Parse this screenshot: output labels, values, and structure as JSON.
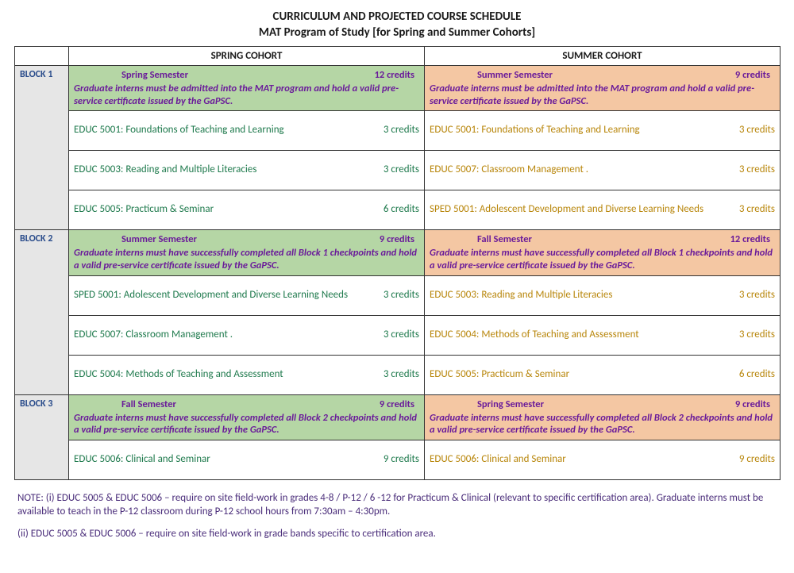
{
  "title": "CURRICULUM AND PROJECTED COURSE SCHEDULE",
  "subtitle": "MAT Program of Study [for Spring and Summer Cohorts]",
  "columns": {
    "spring": "SPRING COHORT",
    "summer": "SUMMER COHORT"
  },
  "colors": {
    "header_green": "#b5d6a5",
    "header_orange": "#f4c7a3",
    "block_label_bg": "#e6e6e6",
    "block_label_text": "#2a4c8b",
    "purple_text": "#6a1b9a",
    "spring_text": "#1f7a4d",
    "summer_text": "#b8860b",
    "note_text": "#4a2d7a"
  },
  "blocks": [
    {
      "label": "BLOCK 1",
      "spring": {
        "semester": "Spring  Semester",
        "credits": "12 credits",
        "note": "Graduate interns must be admitted into the MAT program and hold a valid pre-service certificate issued by the GaPSC.",
        "courses": [
          {
            "name": "EDUC 5001: Foundations of Teaching and Learning",
            "credits": "3 credits"
          },
          {
            "name": "EDUC 5003: Reading and Multiple Literacies",
            "credits": "3 credits"
          },
          {
            "name": "EDUC 5005: Practicum & Seminar",
            "credits": "6 credits"
          }
        ]
      },
      "summer": {
        "semester": "Summer  Semester",
        "credits": "9 credits",
        "note": "Graduate interns must be admitted into the MAT program and hold a valid pre-service certificate issued by the GaPSC.",
        "courses": [
          {
            "name": "EDUC 5001: Foundations of Teaching and Learning",
            "credits": "3 credits"
          },
          {
            "name": "EDUC 5007: Classroom Management     .",
            "credits": "3 credits"
          },
          {
            "name": "SPED 5001: Adolescent Development and Diverse Learning Needs",
            "credits": "3 credits"
          }
        ]
      }
    },
    {
      "label": "BLOCK 2",
      "spring": {
        "semester": "Summer  Semester",
        "credits": "9 credits",
        "note": "Graduate interns must have successfully completed all Block 1 checkpoints and hold a valid pre-service certificate issued by the GaPSC.",
        "courses": [
          {
            "name": "SPED 5001: Adolescent Development and Diverse Learning Needs",
            "credits": "3 credits"
          },
          {
            "name": "EDUC 5007: Classroom Management     .",
            "credits": "3 credits"
          },
          {
            "name": "EDUC 5004: Methods of Teaching and Assessment",
            "credits": "3 credits"
          }
        ]
      },
      "summer": {
        "semester": "Fall  Semester",
        "credits": "12 credits",
        "note": "Graduate interns must have successfully completed all Block 1 checkpoints and hold a valid pre-service certificate issued by the GaPSC.",
        "courses": [
          {
            "name": "EDUC 5003: Reading and Multiple Literacies",
            "credits": "3 credits"
          },
          {
            "name": "EDUC 5004: Methods of Teaching and Assessment",
            "credits": "3 credits"
          },
          {
            "name": "EDUC 5005:  Practicum & Seminar",
            "credits": "6 credits"
          }
        ]
      }
    },
    {
      "label": "BLOCK 3",
      "spring": {
        "semester": "Fall  Semester",
        "credits": "9 credits",
        "note": "Graduate interns must have successfully completed all Block 2 checkpoints and hold a valid pre-service certificate issued by the GaPSC.",
        "courses": [
          {
            "name": "EDUC 5006: Clinical and Seminar",
            "credits": "9 credits"
          }
        ]
      },
      "summer": {
        "semester": "Spring  Semester",
        "credits": "9 credits",
        "note": "Graduate interns must have successfully completed all Block 2 checkpoints and hold a valid pre-service certificate issued by the GaPSC.",
        "courses": [
          {
            "name": "EDUC 5006: Clinical and Seminar",
            "credits": "9 credits"
          }
        ]
      }
    }
  ],
  "notes": [
    "NOTE: (i) EDUC 5005 & EDUC 5006 – require on site field-work in grades 4-8 / P-12 / 6 -12 for Practicum & Clinical (relevant to specific certification area).  Graduate interns must be available to teach in the P-12 classroom during P-12 school hours from 7:30am – 4:30pm.",
    "(ii) EDUC 5005 & EDUC 5006 – require on site field-work in grade bands specific to certification area."
  ]
}
